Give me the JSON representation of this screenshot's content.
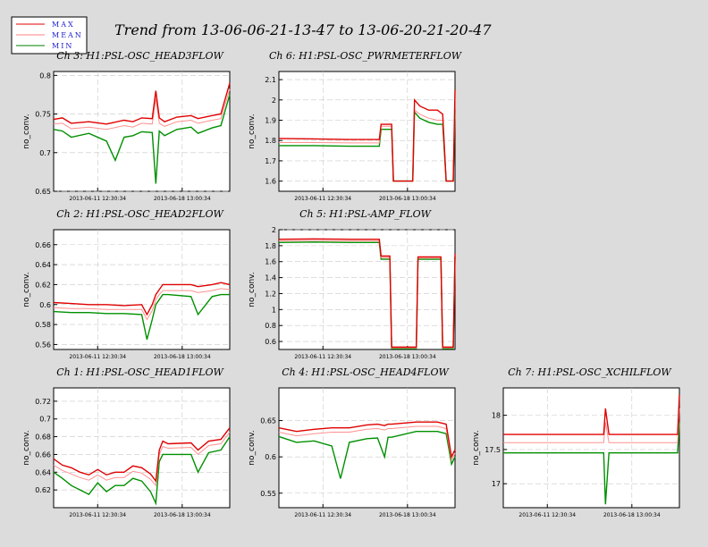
{
  "title": "Trend from 13-06-06-21-13-47 to 13-06-20-21-20-47",
  "legend": [
    {
      "label": "MAX",
      "color": "#e00000"
    },
    {
      "label": "MEAN",
      "color": "#ff8080"
    },
    {
      "label": "MIN",
      "color": "#008000"
    }
  ],
  "colors": {
    "background": "#dcdcdc",
    "plot_bg": "#ffffff",
    "max": "#e00000",
    "mean": "#ff9090",
    "min": "#009000",
    "grid": "#c8c8c8"
  },
  "chart_data": [
    {
      "type": "line",
      "title": "Ch 3: H1:PSL-OSC_HEAD3FLOW",
      "ylabel": "no_conv.",
      "ylim": [
        0.65,
        0.805
      ],
      "yticks": [
        0.65,
        0.7,
        0.75,
        0.8
      ],
      "xtick_labels": [
        "2013-06-11 12:30:34",
        "2013-06-18 13:00:34"
      ],
      "xtick_pos": [
        0.25,
        0.73
      ],
      "series": [
        {
          "name": "MAX",
          "x": [
            0,
            0.05,
            0.1,
            0.2,
            0.3,
            0.4,
            0.45,
            0.5,
            0.56,
            0.58,
            0.6,
            0.63,
            0.7,
            0.78,
            0.82,
            0.9,
            0.95,
            1.0
          ],
          "values": [
            0.743,
            0.745,
            0.738,
            0.74,
            0.737,
            0.742,
            0.74,
            0.745,
            0.744,
            0.78,
            0.745,
            0.74,
            0.746,
            0.748,
            0.744,
            0.748,
            0.75,
            0.79
          ]
        },
        {
          "name": "MEAN",
          "x": [
            0,
            0.05,
            0.1,
            0.2,
            0.3,
            0.4,
            0.45,
            0.5,
            0.56,
            0.58,
            0.6,
            0.63,
            0.7,
            0.78,
            0.82,
            0.9,
            0.95,
            1.0
          ],
          "values": [
            0.737,
            0.738,
            0.731,
            0.733,
            0.73,
            0.735,
            0.733,
            0.738,
            0.737,
            0.77,
            0.738,
            0.734,
            0.74,
            0.742,
            0.738,
            0.742,
            0.744,
            0.782
          ]
        },
        {
          "name": "MIN",
          "x": [
            0,
            0.05,
            0.1,
            0.2,
            0.3,
            0.35,
            0.4,
            0.45,
            0.5,
            0.56,
            0.58,
            0.6,
            0.63,
            0.7,
            0.78,
            0.82,
            0.9,
            0.95,
            1.0
          ],
          "values": [
            0.73,
            0.728,
            0.72,
            0.725,
            0.715,
            0.69,
            0.72,
            0.722,
            0.727,
            0.726,
            0.66,
            0.728,
            0.722,
            0.73,
            0.733,
            0.725,
            0.732,
            0.735,
            0.775
          ]
        }
      ]
    },
    {
      "type": "line",
      "title": "Ch 6: H1:PSL-OSC_PWRMETERFLOW",
      "ylabel": "no_conv.",
      "ylim": [
        1.55,
        2.14
      ],
      "yticks": [
        1.6,
        1.7,
        1.8,
        1.9,
        2.0,
        2.1
      ],
      "xtick_labels": [
        "2013-06-11 12:30:34",
        "2013-06-18 13:00:34"
      ],
      "xtick_pos": [
        0.25,
        0.73
      ],
      "series": [
        {
          "name": "MAX",
          "x": [
            0,
            0.2,
            0.4,
            0.57,
            0.58,
            0.6,
            0.64,
            0.65,
            0.76,
            0.77,
            0.8,
            0.85,
            0.9,
            0.93,
            0.95,
            0.99,
            1.0
          ],
          "values": [
            1.81,
            1.808,
            1.805,
            1.805,
            1.88,
            1.88,
            1.88,
            1.6,
            1.6,
            2.0,
            1.97,
            1.95,
            1.95,
            1.93,
            1.6,
            1.6,
            2.05
          ]
        },
        {
          "name": "MEAN",
          "x": [
            0,
            0.2,
            0.4,
            0.57,
            0.58,
            0.6,
            0.64,
            0.65,
            0.76,
            0.77,
            0.8,
            0.85,
            0.9,
            0.93,
            0.95,
            0.99,
            1.0
          ],
          "values": [
            1.79,
            1.79,
            1.788,
            1.788,
            1.87,
            1.87,
            1.87,
            1.6,
            1.6,
            1.95,
            1.93,
            1.91,
            1.9,
            1.9,
            1.6,
            1.6,
            2.0
          ]
        },
        {
          "name": "MIN",
          "x": [
            0,
            0.2,
            0.4,
            0.57,
            0.58,
            0.6,
            0.64,
            0.65,
            0.76,
            0.77,
            0.8,
            0.85,
            0.9,
            0.93,
            0.95,
            0.99,
            1.0
          ],
          "values": [
            1.775,
            1.775,
            1.772,
            1.772,
            1.855,
            1.855,
            1.855,
            1.6,
            1.6,
            1.94,
            1.91,
            1.89,
            1.88,
            1.88,
            1.6,
            1.6,
            1.95
          ]
        }
      ]
    },
    {
      "type": "line",
      "title": "Ch 2: H1:PSL-OSC_HEAD2FLOW",
      "ylabel": "no_conv.",
      "ylim": [
        0.555,
        0.675
      ],
      "yticks": [
        0.56,
        0.58,
        0.6,
        0.62,
        0.64,
        0.66
      ],
      "xtick_labels": [
        "2013-06-11 12:30:34",
        "2013-06-18 13:00:34"
      ],
      "xtick_pos": [
        0.25,
        0.73
      ],
      "series": [
        {
          "name": "MAX",
          "x": [
            0,
            0.1,
            0.2,
            0.3,
            0.4,
            0.5,
            0.53,
            0.56,
            0.58,
            0.6,
            0.62,
            0.65,
            0.78,
            0.82,
            0.9,
            0.95,
            1.0
          ],
          "values": [
            0.602,
            0.601,
            0.6,
            0.6,
            0.599,
            0.6,
            0.59,
            0.6,
            0.61,
            0.615,
            0.62,
            0.62,
            0.62,
            0.618,
            0.62,
            0.622,
            0.62
          ]
        },
        {
          "name": "MEAN",
          "x": [
            0,
            0.1,
            0.2,
            0.3,
            0.4,
            0.5,
            0.53,
            0.56,
            0.58,
            0.6,
            0.62,
            0.65,
            0.78,
            0.82,
            0.9,
            0.95,
            1.0
          ],
          "values": [
            0.597,
            0.596,
            0.596,
            0.595,
            0.595,
            0.595,
            0.585,
            0.594,
            0.605,
            0.61,
            0.614,
            0.614,
            0.614,
            0.612,
            0.614,
            0.616,
            0.615
          ]
        },
        {
          "name": "MIN",
          "x": [
            0,
            0.1,
            0.2,
            0.3,
            0.4,
            0.5,
            0.53,
            0.56,
            0.58,
            0.6,
            0.62,
            0.65,
            0.78,
            0.82,
            0.9,
            0.95,
            1.0
          ],
          "values": [
            0.593,
            0.592,
            0.592,
            0.591,
            0.591,
            0.59,
            0.565,
            0.585,
            0.6,
            0.605,
            0.61,
            0.61,
            0.608,
            0.59,
            0.608,
            0.61,
            0.61
          ]
        }
      ]
    },
    {
      "type": "line",
      "title": "Ch 5: H1:PSL-AMP_FLOW",
      "ylabel": "no_conv.",
      "ylim": [
        0.5,
        2.0
      ],
      "yticks": [
        0.6,
        0.8,
        1.0,
        1.2,
        1.4,
        1.6,
        1.8,
        2.0
      ],
      "xtick_labels": [
        "2013-06-11 12:30:34",
        "2013-06-18 13:00:34"
      ],
      "xtick_pos": [
        0.25,
        0.73
      ],
      "series": [
        {
          "name": "MAX",
          "x": [
            0,
            0.2,
            0.4,
            0.57,
            0.58,
            0.63,
            0.64,
            0.78,
            0.79,
            0.92,
            0.93,
            0.99,
            1.0
          ],
          "values": [
            1.88,
            1.885,
            1.88,
            1.88,
            1.67,
            1.67,
            0.53,
            0.53,
            1.66,
            1.66,
            0.53,
            0.53,
            1.7
          ]
        },
        {
          "name": "MEAN",
          "x": [
            0,
            0.2,
            0.4,
            0.57,
            0.58,
            0.63,
            0.64,
            0.78,
            0.79,
            0.92,
            0.93,
            0.99,
            1.0
          ],
          "values": [
            1.86,
            1.865,
            1.86,
            1.86,
            1.65,
            1.65,
            0.52,
            0.52,
            1.645,
            1.645,
            0.52,
            0.52,
            1.68
          ]
        },
        {
          "name": "MIN",
          "x": [
            0,
            0.2,
            0.4,
            0.57,
            0.58,
            0.63,
            0.64,
            0.78,
            0.79,
            0.92,
            0.93,
            0.99,
            1.0
          ],
          "values": [
            1.84,
            1.845,
            1.84,
            1.84,
            1.63,
            1.63,
            0.51,
            0.51,
            1.63,
            1.63,
            0.51,
            0.51,
            1.66
          ]
        }
      ]
    },
    {
      "type": "line",
      "title": "Ch 1: H1:PSL-OSC_HEAD1FLOW",
      "ylabel": "no_conv.",
      "ylim": [
        0.6,
        0.735
      ],
      "yticks": [
        0.62,
        0.64,
        0.66,
        0.68,
        0.7,
        0.72
      ],
      "xtick_labels": [
        "2013-06-11 12:30:34",
        "2013-06-18 13:00:34"
      ],
      "xtick_pos": [
        0.25,
        0.73
      ],
      "series": [
        {
          "name": "MAX",
          "x": [
            0,
            0.05,
            0.1,
            0.15,
            0.2,
            0.25,
            0.3,
            0.35,
            0.4,
            0.45,
            0.5,
            0.55,
            0.58,
            0.6,
            0.62,
            0.65,
            0.78,
            0.82,
            0.88,
            0.95,
            1.0
          ],
          "values": [
            0.655,
            0.648,
            0.645,
            0.64,
            0.637,
            0.643,
            0.637,
            0.64,
            0.64,
            0.647,
            0.645,
            0.638,
            0.63,
            0.665,
            0.675,
            0.672,
            0.673,
            0.665,
            0.675,
            0.677,
            0.69
          ]
        },
        {
          "name": "MEAN",
          "x": [
            0,
            0.05,
            0.1,
            0.15,
            0.2,
            0.25,
            0.3,
            0.35,
            0.4,
            0.45,
            0.5,
            0.55,
            0.58,
            0.6,
            0.62,
            0.65,
            0.78,
            0.82,
            0.88,
            0.95,
            1.0
          ],
          "values": [
            0.648,
            0.642,
            0.638,
            0.634,
            0.631,
            0.637,
            0.631,
            0.634,
            0.634,
            0.641,
            0.639,
            0.632,
            0.625,
            0.66,
            0.669,
            0.667,
            0.668,
            0.66,
            0.67,
            0.672,
            0.685
          ]
        },
        {
          "name": "MIN",
          "x": [
            0,
            0.05,
            0.1,
            0.15,
            0.2,
            0.25,
            0.3,
            0.35,
            0.4,
            0.45,
            0.5,
            0.55,
            0.58,
            0.6,
            0.62,
            0.65,
            0.78,
            0.82,
            0.88,
            0.95,
            1.0
          ],
          "values": [
            0.64,
            0.633,
            0.625,
            0.62,
            0.615,
            0.628,
            0.618,
            0.625,
            0.625,
            0.633,
            0.63,
            0.618,
            0.605,
            0.652,
            0.66,
            0.66,
            0.66,
            0.64,
            0.662,
            0.665,
            0.68
          ]
        }
      ]
    },
    {
      "type": "line",
      "title": "Ch 4: H1:PSL-OSC_HEAD4FLOW",
      "ylabel": "no_conv.",
      "ylim": [
        0.53,
        0.695
      ],
      "yticks": [
        0.55,
        0.6,
        0.65
      ],
      "xtick_labels": [
        "2013-06-11 12:30:34",
        "2013-06-18 13:00:34"
      ],
      "xtick_pos": [
        0.25,
        0.73
      ],
      "series": [
        {
          "name": "MAX",
          "x": [
            0,
            0.1,
            0.2,
            0.3,
            0.4,
            0.5,
            0.56,
            0.6,
            0.62,
            0.64,
            0.78,
            0.82,
            0.9,
            0.95,
            0.98,
            1.0
          ],
          "values": [
            0.64,
            0.635,
            0.638,
            0.64,
            0.64,
            0.644,
            0.645,
            0.643,
            0.645,
            0.645,
            0.648,
            0.648,
            0.648,
            0.645,
            0.6,
            0.61
          ]
        },
        {
          "name": "MEAN",
          "x": [
            0,
            0.1,
            0.2,
            0.3,
            0.4,
            0.5,
            0.56,
            0.6,
            0.62,
            0.64,
            0.78,
            0.82,
            0.9,
            0.95,
            0.98,
            1.0
          ],
          "values": [
            0.634,
            0.629,
            0.632,
            0.634,
            0.634,
            0.638,
            0.639,
            0.637,
            0.639,
            0.639,
            0.642,
            0.642,
            0.642,
            0.639,
            0.595,
            0.605
          ]
        },
        {
          "name": "MIN",
          "x": [
            0,
            0.1,
            0.2,
            0.3,
            0.35,
            0.4,
            0.5,
            0.56,
            0.6,
            0.62,
            0.64,
            0.78,
            0.82,
            0.9,
            0.95,
            0.98,
            1.0
          ],
          "values": [
            0.628,
            0.62,
            0.622,
            0.615,
            0.57,
            0.62,
            0.625,
            0.626,
            0.6,
            0.627,
            0.627,
            0.635,
            0.635,
            0.635,
            0.632,
            0.59,
            0.6
          ]
        }
      ]
    },
    {
      "type": "line",
      "title": "Ch 7: H1:PSL-OSC_XCHILFLOW",
      "ylabel": "no_conv.",
      "ylim": [
        16.65,
        18.4
      ],
      "yticks": [
        17,
        17.5,
        18
      ],
      "xtick_labels": [
        "2013-06-11 12:30:34",
        "2013-06-18 13:00:34"
      ],
      "xtick_pos": [
        0.25,
        0.73
      ],
      "series": [
        {
          "name": "MAX",
          "x": [
            0,
            0.2,
            0.4,
            0.57,
            0.58,
            0.6,
            0.63,
            0.78,
            0.8,
            0.9,
            0.95,
            0.99,
            1.0
          ],
          "values": [
            17.72,
            17.72,
            17.72,
            17.72,
            18.1,
            17.72,
            17.72,
            17.72,
            17.72,
            17.72,
            17.72,
            17.72,
            18.3
          ]
        },
        {
          "name": "MEAN",
          "x": [
            0,
            0.2,
            0.4,
            0.57,
            0.58,
            0.6,
            0.63,
            0.78,
            0.8,
            0.9,
            0.95,
            0.99,
            1.0
          ],
          "values": [
            17.6,
            17.6,
            17.6,
            17.6,
            17.9,
            17.6,
            17.6,
            17.6,
            17.6,
            17.6,
            17.6,
            17.6,
            18.1
          ]
        },
        {
          "name": "MIN",
          "x": [
            0,
            0.2,
            0.4,
            0.57,
            0.58,
            0.6,
            0.63,
            0.78,
            0.8,
            0.9,
            0.95,
            0.99,
            1.0
          ],
          "values": [
            17.45,
            17.45,
            17.45,
            17.45,
            16.7,
            17.45,
            17.45,
            17.45,
            17.45,
            17.45,
            17.45,
            17.45,
            17.9
          ]
        }
      ]
    }
  ]
}
